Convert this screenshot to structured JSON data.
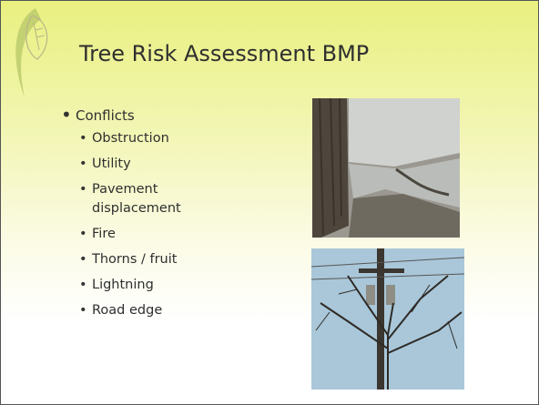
{
  "title": "Tree Risk Assessment BMP",
  "bullets": {
    "heading": "Conflicts",
    "items": [
      "Obstruction",
      "Utility",
      "Pavement displacement",
      "Fire",
      "Thorns / fruit",
      "Lightning",
      "Road edge"
    ]
  }
}
